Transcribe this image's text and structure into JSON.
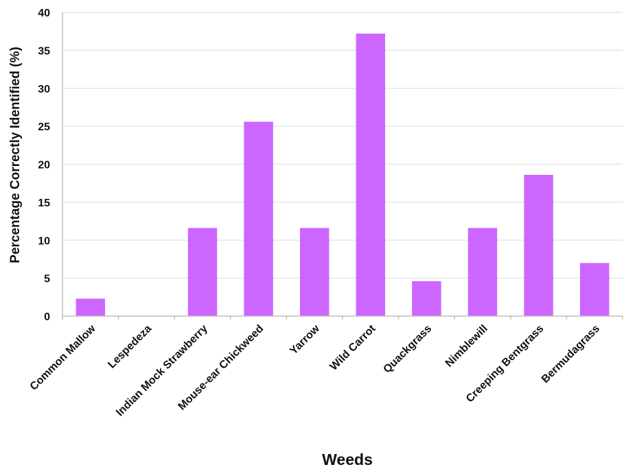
{
  "chart_data": {
    "type": "bar",
    "title": "",
    "xlabel": "Weeds",
    "ylabel": "Percentage Correctly Identified  (%)",
    "ylim": [
      0,
      40
    ],
    "yticks": [
      0,
      5,
      10,
      15,
      20,
      25,
      30,
      35,
      40
    ],
    "grid": true,
    "legend": "none",
    "categories": [
      "Common Mallow",
      "Lespedeza",
      "Indian Mock Strawberry",
      "Mouse-ear Chickweed",
      "Yarrow",
      "Wild Carrot",
      "Quackgrass",
      "Nimblewill",
      "Creeping Bentgrass",
      "Bermudagrass"
    ],
    "values": [
      2.3,
      0,
      11.6,
      25.6,
      11.6,
      37.2,
      4.6,
      11.6,
      18.6,
      7.0
    ],
    "bar_color": "#cc66ff",
    "grid_color": "#e6e6e6",
    "axis_color": "#bfbfbf"
  }
}
